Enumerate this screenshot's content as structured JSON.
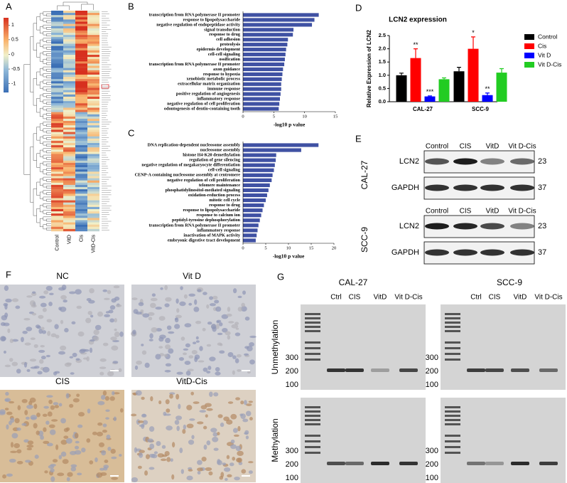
{
  "panel_labels": [
    "A",
    "B",
    "C",
    "D",
    "E",
    "F",
    "G"
  ],
  "heatmap": {
    "columns": [
      "Control",
      "VitD",
      "Cis",
      "VitD-Cis"
    ],
    "colorbar_ticks": [
      1,
      0.5,
      0,
      -0.5,
      -1
    ],
    "clim": [
      -1.3,
      1.25
    ]
  },
  "chart_data": [
    {
      "type": "barh",
      "xlabel": "-log10 p value",
      "color": "#3f51a3",
      "categories": [
        "transcription from RNA polymerase II promoter",
        "response to lipopolysaccharide",
        "negative regulation of endopeptidase activity",
        "signal transduction",
        "response to drug",
        "cell adhesion",
        "proteolysis",
        "epidermis development",
        "cell-cell signaling",
        "ossification",
        "transcription from RNA polymerase II promoter",
        "axon guidance",
        "response to hypoxia",
        "xenobiotic metabolic process",
        "extracellular matrix organization",
        "immune response",
        "positive regulation of angiogenesis",
        "inflammatory response",
        "negative regulation of cell proliferation",
        "odontogenesis of dentin-containing tooth"
      ],
      "values": [
        12.3,
        11.6,
        11.2,
        8.2,
        8.1,
        7.3,
        7.2,
        7.0,
        6.9,
        6.8,
        6.7,
        6.5,
        6.4,
        6.3,
        6.2,
        6.2,
        6.1,
        6.0,
        5.9,
        5.8
      ],
      "label_colors": [
        "#000000",
        "#e0282e",
        "#000000",
        "#000000",
        "#e0282e",
        "#000000",
        "#000000",
        "#000000",
        "#000000",
        "#000000",
        "#000000",
        "#000000",
        "#000000",
        "#000000",
        "#000000",
        "#000000",
        "#000000",
        "#000000",
        "#000000",
        "#000000"
      ],
      "xlim": [
        0,
        15
      ],
      "xticks": [
        0,
        5,
        10,
        15
      ]
    },
    {
      "type": "barh",
      "xlabel": "-log10 p value",
      "color": "#3f51a3",
      "categories": [
        "DNA replication-dependent nucleosome assembly",
        "nucleosome assembly",
        "histone H4-K20 demethylation",
        "regulation of gene silencing",
        "negative regulation of megakaryocyte differentiation",
        "cell-cell signaling",
        "CENP-A containing nucleosome assembly at centromere",
        "negative regulation of cell proliferation",
        "telomere maintenance",
        "phosphatidylinositol-mediated signaling",
        "oxidation-reduction process",
        "mitotic cell cycle",
        "response to drug",
        "response to lipopolysaccharide",
        "response to calcium ion",
        "peptidyl-tyrosine dephosphorylation",
        "transcription from RNA polymerase II promoter",
        "inflammatory response",
        "inactivation of MAPK activity",
        "embryonic digestive tract development"
      ],
      "values": [
        16.6,
        12.8,
        7.3,
        7.2,
        7.0,
        6.8,
        6.5,
        6.3,
        5.9,
        5.6,
        5.3,
        5.0,
        4.6,
        4.3,
        4.0,
        3.7,
        3.4,
        3.2,
        3.0,
        2.8
      ],
      "label_colors": [
        "#000000",
        "#000000",
        "#000000",
        "#000000",
        "#000000",
        "#000000",
        "#000000",
        "#000000",
        "#000000",
        "#000000",
        "#000000",
        "#000000",
        "#e0282e",
        "#e0282e",
        "#000000",
        "#000000",
        "#000000",
        "#000000",
        "#000000",
        "#000000"
      ],
      "xlim": [
        0,
        20
      ],
      "xticks": [
        0,
        5,
        10,
        15,
        20
      ]
    },
    {
      "type": "bar",
      "title": "LCN2 expression",
      "ylabel": "Relative Expression of LCN2",
      "categories": [
        "CAL-27",
        "SCC-9"
      ],
      "legend": "right",
      "series": [
        {
          "name": "Control",
          "color": "#000000",
          "values": [
            1.0,
            1.15
          ],
          "errors": [
            0.08,
            0.15
          ]
        },
        {
          "name": "Cis",
          "color": "#ff0000",
          "values": [
            1.65,
            2.0
          ],
          "errors": [
            0.35,
            0.45
          ],
          "annotations": [
            "**",
            "*"
          ]
        },
        {
          "name": "Vit D",
          "color": "#0000ff",
          "values": [
            0.2,
            0.25
          ],
          "errors": [
            0.02,
            0.08
          ],
          "annotations": [
            "***",
            "**"
          ]
        },
        {
          "name": "Vit D-Cis",
          "color": "#22cc22",
          "values": [
            0.85,
            1.1
          ],
          "errors": [
            0.05,
            0.15
          ]
        }
      ],
      "ylim": [
        0,
        2.5
      ],
      "yticks": [
        {
          "value": 0,
          "label": "0.0"
        },
        {
          "value": 0.5,
          "label": "0.5"
        },
        {
          "value": 1,
          "label": "1.0"
        },
        {
          "value": 1.5,
          "label": "1.5"
        },
        {
          "value": 2,
          "label": "2.0"
        },
        {
          "value": 2.5,
          "label": "2.5"
        }
      ]
    }
  ],
  "western_blot": {
    "cell_lines": [
      "CAL-27",
      "SCC-9"
    ],
    "lanes": [
      "Control",
      "CIS",
      "VitD",
      "Vit D-Cis"
    ],
    "proteins": [
      "LCN2",
      "GAPDH"
    ],
    "sizes": [
      "23",
      "37"
    ]
  },
  "ihc": {
    "labels": [
      "NC",
      "Vit D",
      "CIS",
      "VitD-Cis"
    ]
  },
  "gel": {
    "cell_lines": [
      "CAL-27",
      "SCC-9"
    ],
    "lanes": [
      "Ctrl",
      "CIS",
      "VitD",
      "Vit D-Cis"
    ],
    "rows": [
      "Unmethylation",
      "Methylation"
    ],
    "ladder": [
      "300",
      "200",
      "100"
    ]
  }
}
